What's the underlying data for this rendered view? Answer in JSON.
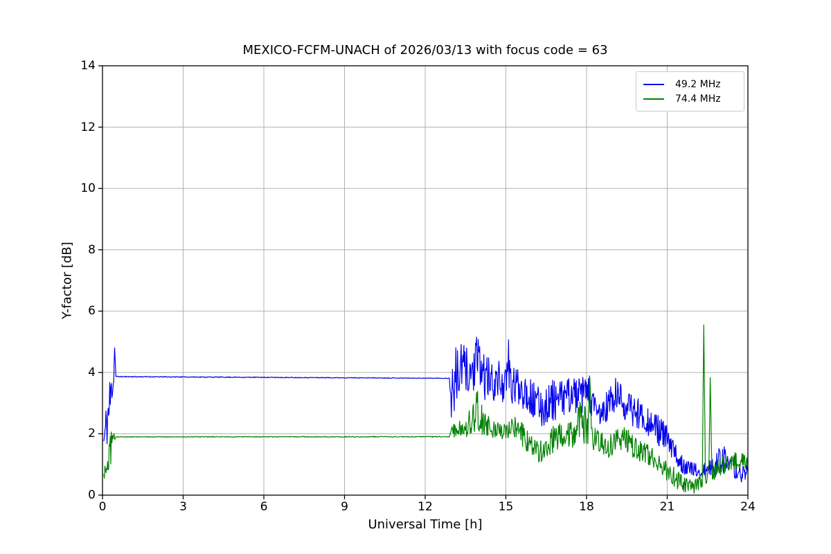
{
  "chart_data": {
    "type": "line",
    "title": "MEXICO-FCFM-UNACH of 2026/03/13 with focus code = 63",
    "xlabel": "Universal Time [h]",
    "ylabel": "Y-factor [dB]",
    "xlim": [
      0,
      24
    ],
    "ylim": [
      0,
      14
    ],
    "xticks": [
      0,
      3,
      6,
      9,
      12,
      15,
      18,
      21,
      24
    ],
    "yticks": [
      0,
      2,
      4,
      6,
      8,
      10,
      12,
      14
    ],
    "grid": true,
    "grid_color": "#b0b0b0",
    "legend_position": "upper right",
    "sampling_step": 0.02,
    "series": [
      {
        "name": "49.2 MHz",
        "color": "#0000ee",
        "seed": 11,
        "envelope": [
          [
            0.05,
            1.4,
            2.1
          ],
          [
            0.15,
            1.5,
            3.2
          ],
          [
            0.25,
            1.6,
            4.0
          ],
          [
            0.35,
            3.0,
            4.1
          ],
          [
            0.42,
            3.4,
            4.2
          ],
          [
            0.45,
            4.8,
            4.9
          ],
          [
            0.5,
            3.85,
            3.88
          ],
          [
            12.9,
            3.8,
            3.82
          ],
          [
            12.97,
            2.4,
            4.0
          ],
          [
            13.1,
            2.6,
            4.8
          ],
          [
            13.4,
            3.4,
            5.0
          ],
          [
            13.7,
            3.2,
            4.7
          ],
          [
            13.95,
            3.4,
            5.25
          ],
          [
            14.2,
            3.1,
            4.7
          ],
          [
            14.5,
            3.0,
            4.3
          ],
          [
            14.8,
            3.1,
            4.4
          ],
          [
            15.0,
            2.9,
            4.1
          ],
          [
            15.1,
            3.4,
            5.3
          ],
          [
            15.2,
            2.9,
            4.1
          ],
          [
            15.5,
            2.9,
            4.3
          ],
          [
            15.8,
            2.7,
            4.0
          ],
          [
            16.1,
            2.3,
            3.6
          ],
          [
            16.4,
            2.2,
            3.5
          ],
          [
            16.7,
            2.4,
            3.8
          ],
          [
            17.0,
            2.5,
            3.7
          ],
          [
            17.4,
            2.7,
            3.9
          ],
          [
            17.8,
            2.6,
            3.8
          ],
          [
            18.05,
            2.8,
            4.1
          ],
          [
            18.3,
            2.1,
            3.3
          ],
          [
            18.6,
            2.1,
            3.2
          ],
          [
            18.9,
            2.4,
            3.7
          ],
          [
            19.2,
            2.6,
            3.9
          ],
          [
            19.5,
            2.3,
            3.4
          ],
          [
            19.8,
            2.2,
            3.3
          ],
          [
            20.1,
            2.1,
            3.1
          ],
          [
            20.4,
            1.8,
            2.8
          ],
          [
            20.7,
            1.6,
            2.6
          ],
          [
            21.0,
            1.3,
            2.3
          ],
          [
            21.3,
            0.9,
            1.7
          ],
          [
            21.6,
            0.7,
            1.3
          ],
          [
            21.9,
            0.6,
            1.1
          ],
          [
            22.2,
            0.5,
            1.0
          ],
          [
            22.5,
            0.5,
            1.1
          ],
          [
            22.8,
            0.6,
            1.3
          ],
          [
            23.0,
            0.8,
            1.9
          ],
          [
            23.2,
            0.6,
            1.4
          ],
          [
            23.5,
            0.5,
            1.1
          ],
          [
            23.8,
            0.4,
            1.0
          ],
          [
            24.0,
            0.4,
            1.1
          ]
        ]
      },
      {
        "name": "74.4 MHz",
        "color": "#008000",
        "seed": 97,
        "envelope": [
          [
            0.05,
            0.4,
            0.9
          ],
          [
            0.15,
            0.5,
            1.3
          ],
          [
            0.25,
            0.7,
            1.9
          ],
          [
            0.35,
            1.2,
            2.2
          ],
          [
            0.45,
            1.6,
            2.2
          ],
          [
            0.5,
            1.89,
            1.91
          ],
          [
            12.9,
            1.89,
            1.92
          ],
          [
            13.0,
            1.9,
            2.3
          ],
          [
            13.3,
            1.8,
            2.5
          ],
          [
            13.6,
            1.8,
            2.7
          ],
          [
            13.85,
            2.0,
            3.6
          ],
          [
            13.95,
            2.2,
            3.7
          ],
          [
            14.1,
            1.9,
            3.1
          ],
          [
            14.35,
            1.9,
            2.6
          ],
          [
            14.7,
            1.8,
            2.4
          ],
          [
            15.0,
            1.8,
            2.4
          ],
          [
            15.3,
            1.9,
            2.6
          ],
          [
            15.6,
            1.6,
            2.4
          ],
          [
            15.9,
            1.2,
            2.0
          ],
          [
            16.2,
            1.0,
            1.8
          ],
          [
            16.5,
            1.2,
            2.0
          ],
          [
            16.8,
            1.4,
            2.3
          ],
          [
            17.1,
            1.5,
            2.4
          ],
          [
            17.5,
            1.5,
            2.5
          ],
          [
            17.85,
            1.7,
            3.3
          ],
          [
            18.05,
            1.5,
            2.6
          ],
          [
            18.12,
            3.8,
            3.9
          ],
          [
            18.2,
            1.4,
            2.4
          ],
          [
            18.5,
            1.3,
            2.1
          ],
          [
            18.8,
            1.2,
            2.0
          ],
          [
            19.1,
            1.4,
            2.2
          ],
          [
            19.4,
            1.5,
            2.3
          ],
          [
            19.7,
            1.2,
            2.0
          ],
          [
            20.0,
            1.0,
            1.8
          ],
          [
            20.4,
            0.9,
            1.6
          ],
          [
            20.8,
            0.6,
            1.3
          ],
          [
            21.2,
            0.3,
            1.0
          ],
          [
            21.5,
            0.1,
            0.7
          ],
          [
            21.8,
            0.0,
            0.5
          ],
          [
            22.0,
            0.05,
            0.5
          ],
          [
            22.2,
            0.1,
            0.7
          ],
          [
            22.3,
            0.2,
            0.8
          ],
          [
            22.36,
            5.55,
            5.62
          ],
          [
            22.42,
            0.3,
            0.9
          ],
          [
            22.55,
            0.4,
            1.0
          ],
          [
            22.6,
            3.8,
            3.88
          ],
          [
            22.66,
            0.4,
            1.0
          ],
          [
            22.9,
            0.6,
            1.2
          ],
          [
            23.2,
            0.7,
            1.4
          ],
          [
            23.5,
            0.8,
            1.5
          ],
          [
            23.8,
            0.8,
            1.4
          ],
          [
            24.0,
            0.8,
            1.3
          ]
        ]
      }
    ]
  }
}
